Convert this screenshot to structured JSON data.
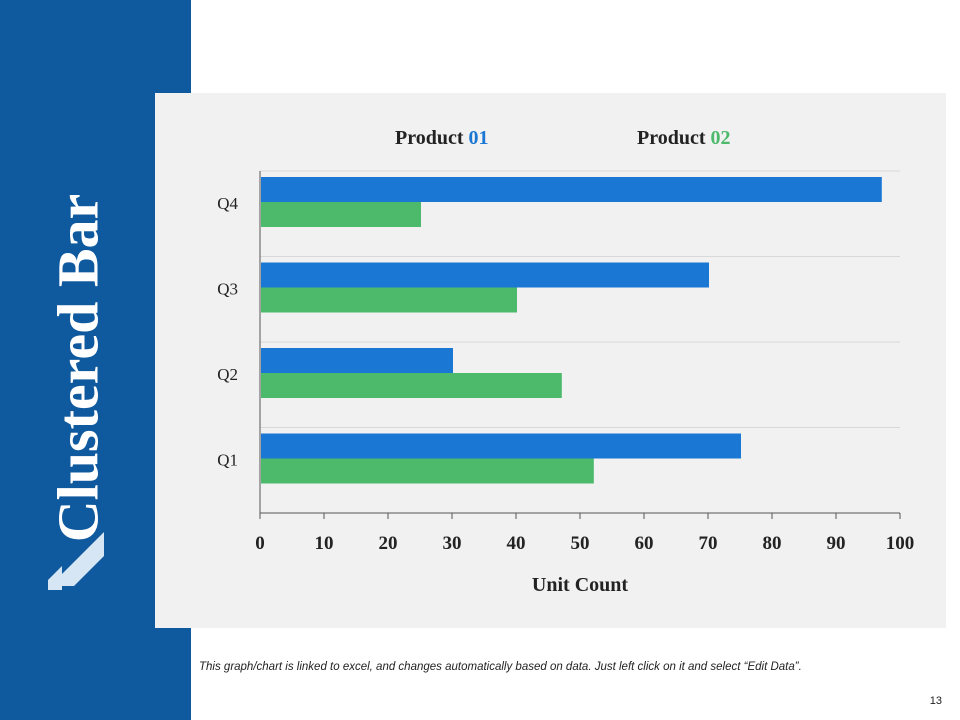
{
  "slide": {
    "title": "Clustered Bar",
    "footnote": "This graph/chart is linked to excel, and changes automatically based on data. Just left click on it and select “Edit Data”.",
    "page_number": "13"
  },
  "colors": {
    "sidebar": "#0f5a9e",
    "series1": "#1a78d4",
    "series2": "#4cb96b",
    "panel": "#f1f1f1"
  },
  "chart_data": {
    "type": "bar",
    "orientation": "horizontal",
    "categories": [
      "Q4",
      "Q3",
      "Q2",
      "Q1"
    ],
    "series": [
      {
        "name_prefix": "Product ",
        "name_number": "01",
        "color": "#1a78d4",
        "values": [
          97,
          70,
          30,
          75
        ]
      },
      {
        "name_prefix": "Product ",
        "name_number": "02",
        "color": "#4cb96b",
        "values": [
          25,
          40,
          47,
          52
        ]
      }
    ],
    "xlabel": "Unit Count",
    "xlim": [
      0,
      100
    ],
    "xticks": [
      0,
      10,
      20,
      30,
      40,
      50,
      60,
      70,
      80,
      90,
      100
    ],
    "grid": true,
    "legend_position": "top"
  }
}
